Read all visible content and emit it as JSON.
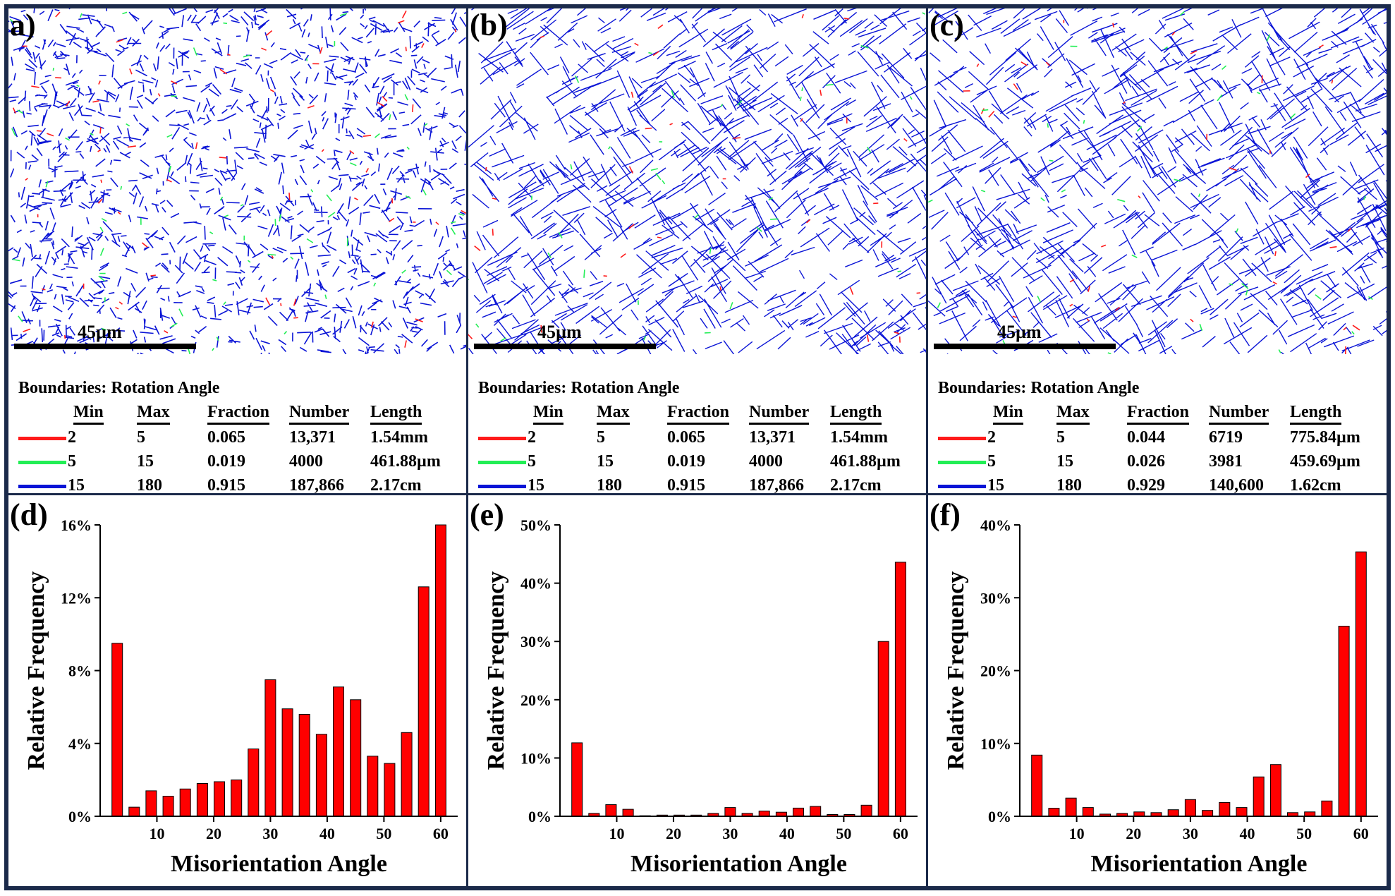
{
  "colors": {
    "low": "#ff1a1a",
    "mid": "#22ee55",
    "high": "#0a14d6",
    "bar": "#ff0000",
    "frame": "#1b2a4a"
  },
  "maps": [
    {
      "label": "a)",
      "scale": "45µm",
      "title": "Boundaries: Rotation Angle",
      "headers": [
        "Min",
        "Max",
        "Fraction",
        "Number",
        "Length"
      ],
      "rows": [
        [
          "2",
          "5",
          "0.065",
          "13,371",
          "1.54mm"
        ],
        [
          "5",
          "15",
          "0.019",
          "4000",
          "461.88µm"
        ],
        [
          "15",
          "180",
          "0.915",
          "187,866",
          "2.17cm"
        ]
      ]
    },
    {
      "label": "(b)",
      "scale": "45µm",
      "title": "Boundaries: Rotation Angle",
      "headers": [
        "Min",
        "Max",
        "Fraction",
        "Number",
        "Length"
      ],
      "rows": [
        [
          "2",
          "5",
          "0.065",
          "13,371",
          "1.54mm"
        ],
        [
          "5",
          "15",
          "0.019",
          "4000",
          "461.88µm"
        ],
        [
          "15",
          "180",
          "0.915",
          "187,866",
          "2.17cm"
        ]
      ]
    },
    {
      "label": "(c)",
      "scale": "45µm",
      "title": "Boundaries: Rotation Angle",
      "headers": [
        "Min",
        "Max",
        "Fraction",
        "Number",
        "Length"
      ],
      "rows": [
        [
          "2",
          "5",
          "0.044",
          "6719",
          "775.84µm"
        ],
        [
          "5",
          "15",
          "0.026",
          "3981",
          "459.69µm"
        ],
        [
          "15",
          "180",
          "0.929",
          "140,600",
          "1.62cm"
        ]
      ]
    }
  ],
  "chart_data": [
    {
      "type": "bar",
      "label": "(d)",
      "xlabel": "Misorientation Angle",
      "ylabel": "Relative Frequency",
      "xlim": [
        0,
        63
      ],
      "ylim": [
        0,
        16
      ],
      "yticks": [
        0,
        4,
        8,
        12,
        16
      ],
      "ytick_labels": [
        "0%",
        "4%",
        "8%",
        "12%",
        "16%"
      ],
      "xticks": [
        10,
        20,
        30,
        40,
        50,
        60
      ],
      "x": [
        3,
        6,
        9,
        12,
        15,
        18,
        21,
        24,
        27,
        30,
        33,
        36,
        39,
        42,
        45,
        48,
        51,
        54,
        57,
        60
      ],
      "values": [
        9.5,
        0.5,
        1.4,
        1.1,
        1.5,
        1.8,
        1.9,
        2.0,
        3.7,
        7.5,
        5.9,
        5.6,
        4.5,
        7.1,
        6.4,
        3.3,
        2.9,
        4.6,
        12.6,
        16.0
      ]
    },
    {
      "type": "bar",
      "label": "(e)",
      "xlabel": "Misorientation Angle",
      "ylabel": "Relative Frequency",
      "xlim": [
        0,
        63
      ],
      "ylim": [
        0,
        50
      ],
      "yticks": [
        0,
        10,
        20,
        30,
        40,
        50
      ],
      "ytick_labels": [
        "0%",
        "10%",
        "20%",
        "30%",
        "40%",
        "50%"
      ],
      "xticks": [
        10,
        20,
        30,
        40,
        50,
        60
      ],
      "x": [
        3,
        6,
        9,
        12,
        15,
        18,
        21,
        24,
        27,
        30,
        33,
        36,
        39,
        42,
        45,
        48,
        51,
        54,
        57,
        60
      ],
      "values": [
        12.6,
        0.5,
        2.0,
        1.2,
        0.1,
        0.2,
        0.2,
        0.2,
        0.5,
        1.5,
        0.5,
        0.9,
        0.7,
        1.4,
        1.7,
        0.3,
        0.3,
        1.9,
        30.0,
        43.6
      ]
    },
    {
      "type": "bar",
      "label": "(f)",
      "xlabel": "Misorientation Angle",
      "ylabel": "Relative Frequency",
      "xlim": [
        0,
        63
      ],
      "ylim": [
        0,
        40
      ],
      "yticks": [
        0,
        10,
        20,
        30,
        40
      ],
      "ytick_labels": [
        "0%",
        "10%",
        "20%",
        "30%",
        "40%"
      ],
      "xticks": [
        10,
        20,
        30,
        40,
        50,
        60
      ],
      "x": [
        3,
        6,
        9,
        12,
        15,
        18,
        21,
        24,
        27,
        30,
        33,
        36,
        39,
        42,
        45,
        48,
        51,
        54,
        57,
        60
      ],
      "values": [
        8.4,
        1.1,
        2.5,
        1.2,
        0.3,
        0.4,
        0.6,
        0.5,
        0.9,
        2.3,
        0.8,
        1.9,
        1.2,
        5.4,
        7.1,
        0.5,
        0.6,
        2.1,
        26.1,
        36.3
      ]
    }
  ]
}
